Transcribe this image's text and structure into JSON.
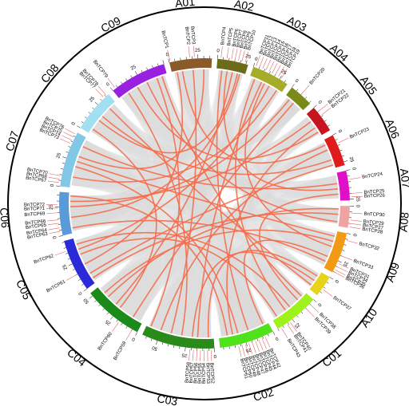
{
  "chromosomes": [
    {
      "name": "A01",
      "color": "#8a5a2b",
      "length": 37,
      "ticks": [
        "0",
        "25"
      ]
    },
    {
      "name": "A02",
      "color": "#6b6b1a",
      "length": 27,
      "ticks": [
        "0",
        "25"
      ]
    },
    {
      "name": "A03",
      "color": "#a7ab2a",
      "length": 33,
      "ticks": [
        "0",
        "25"
      ]
    },
    {
      "name": "A04",
      "color": "#7a8a1a",
      "length": 21,
      "ticks": [
        "0"
      ]
    },
    {
      "name": "A05",
      "color": "#c8141e",
      "length": 24,
      "ticks": [
        "0"
      ]
    },
    {
      "name": "A06",
      "color": "#e01b1b",
      "length": 28,
      "ticks": [
        "0",
        "25"
      ]
    },
    {
      "name": "A07",
      "color": "#e010c8",
      "length": 26,
      "ticks": [
        "0",
        "25"
      ]
    },
    {
      "name": "A08",
      "color": "#f0a3a3",
      "length": 19,
      "ticks": [
        "0"
      ]
    },
    {
      "name": "A09",
      "color": "#f39a14",
      "length": 36,
      "ticks": [
        "0",
        "25"
      ]
    },
    {
      "name": "A10",
      "color": "#e8d21a",
      "length": 19,
      "ticks": [
        "0"
      ]
    },
    {
      "name": "C01",
      "color": "#9ef21a",
      "length": 40,
      "ticks": [
        "0",
        "25"
      ]
    },
    {
      "name": "C02",
      "color": "#4fe21a",
      "length": 48,
      "ticks": [
        "0",
        "25"
      ]
    },
    {
      "name": "C03",
      "color": "#2a8a1a",
      "length": 64,
      "ticks": [
        "0",
        "25",
        "50"
      ]
    },
    {
      "name": "C04",
      "color": "#1a8a1a",
      "length": 53,
      "ticks": [
        "0",
        "25",
        "50"
      ]
    },
    {
      "name": "C05",
      "color": "#2a2ad8",
      "length": 46,
      "ticks": [
        "0",
        "25"
      ]
    },
    {
      "name": "C06",
      "color": "#5a9ad8",
      "length": 38,
      "ticks": [
        "0",
        "25"
      ]
    },
    {
      "name": "C07",
      "color": "#80c8e6",
      "length": 49,
      "ticks": [
        "0",
        "25"
      ]
    },
    {
      "name": "C08",
      "color": "#a0e0f0",
      "length": 38,
      "ticks": [
        "0",
        "25"
      ]
    },
    {
      "name": "C09",
      "color": "#9a20e0",
      "length": 50,
      "ticks": [
        "0",
        "25"
      ]
    }
  ],
  "genes": [
    {
      "label": "BnTCP1",
      "chrom": "A01",
      "pos": 1
    },
    {
      "label": "BnTCP2",
      "chrom": "A01",
      "pos": 18
    },
    {
      "label": "BnTCP3",
      "chrom": "A01",
      "pos": 22
    },
    {
      "label": "BnTCP4",
      "chrom": "A02",
      "pos": 3
    },
    {
      "label": "BnTCP5",
      "chrom": "A02",
      "pos": 8
    },
    {
      "label": "BnTCP6",
      "chrom": "A02",
      "pos": 12
    },
    {
      "label": "BnTCP7",
      "chrom": "A02",
      "pos": 15
    },
    {
      "label": "BnTCP8",
      "chrom": "A02",
      "pos": 18
    },
    {
      "label": "BnTCP9",
      "chrom": "A02",
      "pos": 21
    },
    {
      "label": "BnTCP10",
      "chrom": "A02",
      "pos": 24
    },
    {
      "label": "BnTCP11",
      "chrom": "A03",
      "pos": 2
    },
    {
      "label": "BnTCP12",
      "chrom": "A03",
      "pos": 5
    },
    {
      "label": "BnTCP13",
      "chrom": "A03",
      "pos": 8
    },
    {
      "label": "BnTCP14",
      "chrom": "A03",
      "pos": 11
    },
    {
      "label": "BnTCP15",
      "chrom": "A03",
      "pos": 14
    },
    {
      "label": "BnTCP16",
      "chrom": "A03",
      "pos": 17
    },
    {
      "label": "BnTCP17",
      "chrom": "A03",
      "pos": 20
    },
    {
      "label": "BnTCP18",
      "chrom": "A03",
      "pos": 23
    },
    {
      "label": "BnTCP19",
      "chrom": "A03",
      "pos": 26
    },
    {
      "label": "BnTCP20",
      "chrom": "A04",
      "pos": 10
    },
    {
      "label": "BnTCP21",
      "chrom": "A05",
      "pos": 5
    },
    {
      "label": "BnTCP22",
      "chrom": "A05",
      "pos": 9
    },
    {
      "label": "BnTCP23",
      "chrom": "A06",
      "pos": 8
    },
    {
      "label": "BnTCP24",
      "chrom": "A07",
      "pos": 8
    },
    {
      "label": "BnTCP25",
      "chrom": "A07",
      "pos": 20
    },
    {
      "label": "BnTCP26",
      "chrom": "A07",
      "pos": 23
    },
    {
      "label": "BnTCP30",
      "chrom": "A08",
      "pos": 6
    },
    {
      "label": "BnTCP29",
      "chrom": "A08",
      "pos": 12
    },
    {
      "label": "BnTCP27",
      "chrom": "A08",
      "pos": 15
    },
    {
      "label": "BnTCP28",
      "chrom": "A08",
      "pos": 18
    },
    {
      "label": "BnTCP32",
      "chrom": "A09",
      "pos": 6
    },
    {
      "label": "BnTCP33",
      "chrom": "A09",
      "pos": 20
    },
    {
      "label": "BnTCP31",
      "chrom": "A09",
      "pos": 27
    },
    {
      "label": "BnTCP34",
      "chrom": "A09",
      "pos": 30
    },
    {
      "label": "BnTCP35",
      "chrom": "A09",
      "pos": 33
    },
    {
      "label": "BnTCP36",
      "chrom": "A09",
      "pos": 35
    },
    {
      "label": "BnTCP37",
      "chrom": "A10",
      "pos": 12
    },
    {
      "label": "BnTCP38",
      "chrom": "C01",
      "pos": 5
    },
    {
      "label": "BnTCP39",
      "chrom": "C01",
      "pos": 10
    },
    {
      "label": "BnTCP40",
      "chrom": "C01",
      "pos": 28
    },
    {
      "label": "BnTCP41",
      "chrom": "C01",
      "pos": 31
    },
    {
      "label": "BnTCP43",
      "chrom": "C01",
      "pos": 37
    },
    {
      "label": "BnTCP42",
      "chrom": "C02",
      "pos": 8
    },
    {
      "label": "BnTCP44",
      "chrom": "C02",
      "pos": 11
    },
    {
      "label": "BnTCP45",
      "chrom": "C02",
      "pos": 14
    },
    {
      "label": "BnTCP46",
      "chrom": "C02",
      "pos": 17
    },
    {
      "label": "BnTCP47",
      "chrom": "C02",
      "pos": 20
    },
    {
      "label": "BnTCP48",
      "chrom": "C02",
      "pos": 23
    },
    {
      "label": "BnTCP49",
      "chrom": "C02",
      "pos": 26
    },
    {
      "label": "BnTCP50",
      "chrom": "C02",
      "pos": 29
    },
    {
      "label": "BnTCP51",
      "chrom": "C02",
      "pos": 32
    },
    {
      "label": "BnTCP52",
      "chrom": "C03",
      "pos": 3
    },
    {
      "label": "BnTCP53",
      "chrom": "C03",
      "pos": 6
    },
    {
      "label": "BnTCP54",
      "chrom": "C03",
      "pos": 9
    },
    {
      "label": "BnTCP55",
      "chrom": "C03",
      "pos": 12
    },
    {
      "label": "BnTCP56",
      "chrom": "C03",
      "pos": 15
    },
    {
      "label": "BnTCP57",
      "chrom": "C03",
      "pos": 18
    },
    {
      "label": "BnTCP58",
      "chrom": "C03",
      "pos": 21
    },
    {
      "label": "BnTCP59",
      "chrom": "C04",
      "pos": 5
    },
    {
      "label": "BnTCP60",
      "chrom": "C04",
      "pos": 18
    },
    {
      "label": "BnTCP61",
      "chrom": "C05",
      "pos": 15
    },
    {
      "label": "BnTCP62",
      "chrom": "C05",
      "pos": 37
    },
    {
      "label": "BnTCP63",
      "chrom": "C06",
      "pos": 4
    },
    {
      "label": "BnTCP64",
      "chrom": "C06",
      "pos": 7
    },
    {
      "label": "BnTCP65",
      "chrom": "C06",
      "pos": 11
    },
    {
      "label": "BnTCP66",
      "chrom": "C06",
      "pos": 14
    },
    {
      "label": "BnTCP69",
      "chrom": "C06",
      "pos": 20
    },
    {
      "label": "BnTCP71",
      "chrom": "C06",
      "pos": 24
    },
    {
      "label": "BnTCP72",
      "chrom": "C06",
      "pos": 27
    },
    {
      "label": "BnTCP67",
      "chrom": "C07",
      "pos": 3
    },
    {
      "label": "BnTCP68",
      "chrom": "C07",
      "pos": 6
    },
    {
      "label": "BnTCP70",
      "chrom": "C07",
      "pos": 9
    },
    {
      "label": "BnTCP73",
      "chrom": "C07",
      "pos": 38
    },
    {
      "label": "BnTCP74",
      "chrom": "C07",
      "pos": 41
    },
    {
      "label": "BnTCP75",
      "chrom": "C07",
      "pos": 44
    },
    {
      "label": "BnTCP76",
      "chrom": "C07",
      "pos": 47
    },
    {
      "label": "BnTCP77",
      "chrom": "C08",
      "pos": 33
    },
    {
      "label": "BnTCP78",
      "chrom": "C08",
      "pos": 36
    },
    {
      "label": "BnTCP79",
      "chrom": "C09",
      "pos": 3
    }
  ],
  "links": [
    [
      "A01",
      5,
      "C05",
      20
    ],
    [
      "A01",
      20,
      "C03",
      40
    ],
    [
      "A01",
      30,
      "C07",
      30
    ],
    [
      "A02",
      5,
      "C02",
      20
    ],
    [
      "A02",
      15,
      "C04",
      30
    ],
    [
      "A02",
      22,
      "C06",
      15
    ],
    [
      "A03",
      5,
      "C01",
      25
    ],
    [
      "A03",
      12,
      "C03",
      15
    ],
    [
      "A03",
      20,
      "C05",
      35
    ],
    [
      "A03",
      28,
      "C07",
      10
    ],
    [
      "A04",
      10,
      "C04",
      10
    ],
    [
      "A05",
      8,
      "C06",
      30
    ],
    [
      "A05",
      15,
      "C02",
      35
    ],
    [
      "A06",
      10,
      "C03",
      50
    ],
    [
      "A06",
      20,
      "C08",
      20
    ],
    [
      "A07",
      10,
      "C07",
      40
    ],
    [
      "A07",
      20,
      "C01",
      10
    ],
    [
      "A08",
      8,
      "C05",
      5
    ],
    [
      "A08",
      15,
      "C09",
      30
    ],
    [
      "A09",
      10,
      "C04",
      45
    ],
    [
      "A09",
      25,
      "C02",
      5
    ],
    [
      "A09",
      30,
      "C06",
      5
    ],
    [
      "A10",
      5,
      "C03",
      5
    ],
    [
      "A10",
      15,
      "C08",
      30
    ],
    [
      "C01",
      20,
      "C05",
      40
    ],
    [
      "C02",
      30,
      "C07",
      20
    ],
    [
      "C03",
      30,
      "C09",
      10
    ],
    [
      "C04",
      25,
      "C08",
      5
    ],
    [
      "A01",
      10,
      "A06",
      5
    ],
    [
      "A03",
      15,
      "A09",
      15
    ],
    [
      "A02",
      10,
      "A07",
      15
    ],
    [
      "C09",
      40,
      "C03",
      60
    ],
    [
      "C05",
      30,
      "C01",
      35
    ],
    [
      "A04",
      5,
      "C06",
      25
    ],
    [
      "A05",
      20,
      "C09",
      20
    ],
    [
      "C02",
      40,
      "C06",
      35
    ],
    [
      "A08",
      3,
      "C04",
      40
    ],
    [
      "C07",
      25,
      "A09",
      5
    ],
    [
      "C08",
      15,
      "A02",
      20
    ],
    [
      "C03",
      20,
      "A10",
      10
    ],
    [
      "C05",
      10,
      "A06",
      25
    ],
    [
      "C01",
      5,
      "C09",
      45
    ]
  ],
  "colors": {
    "link": "#f56b4a",
    "background_band": "#d9d9d9",
    "ring": "#000000",
    "gene_marker": "#e06a6a"
  }
}
